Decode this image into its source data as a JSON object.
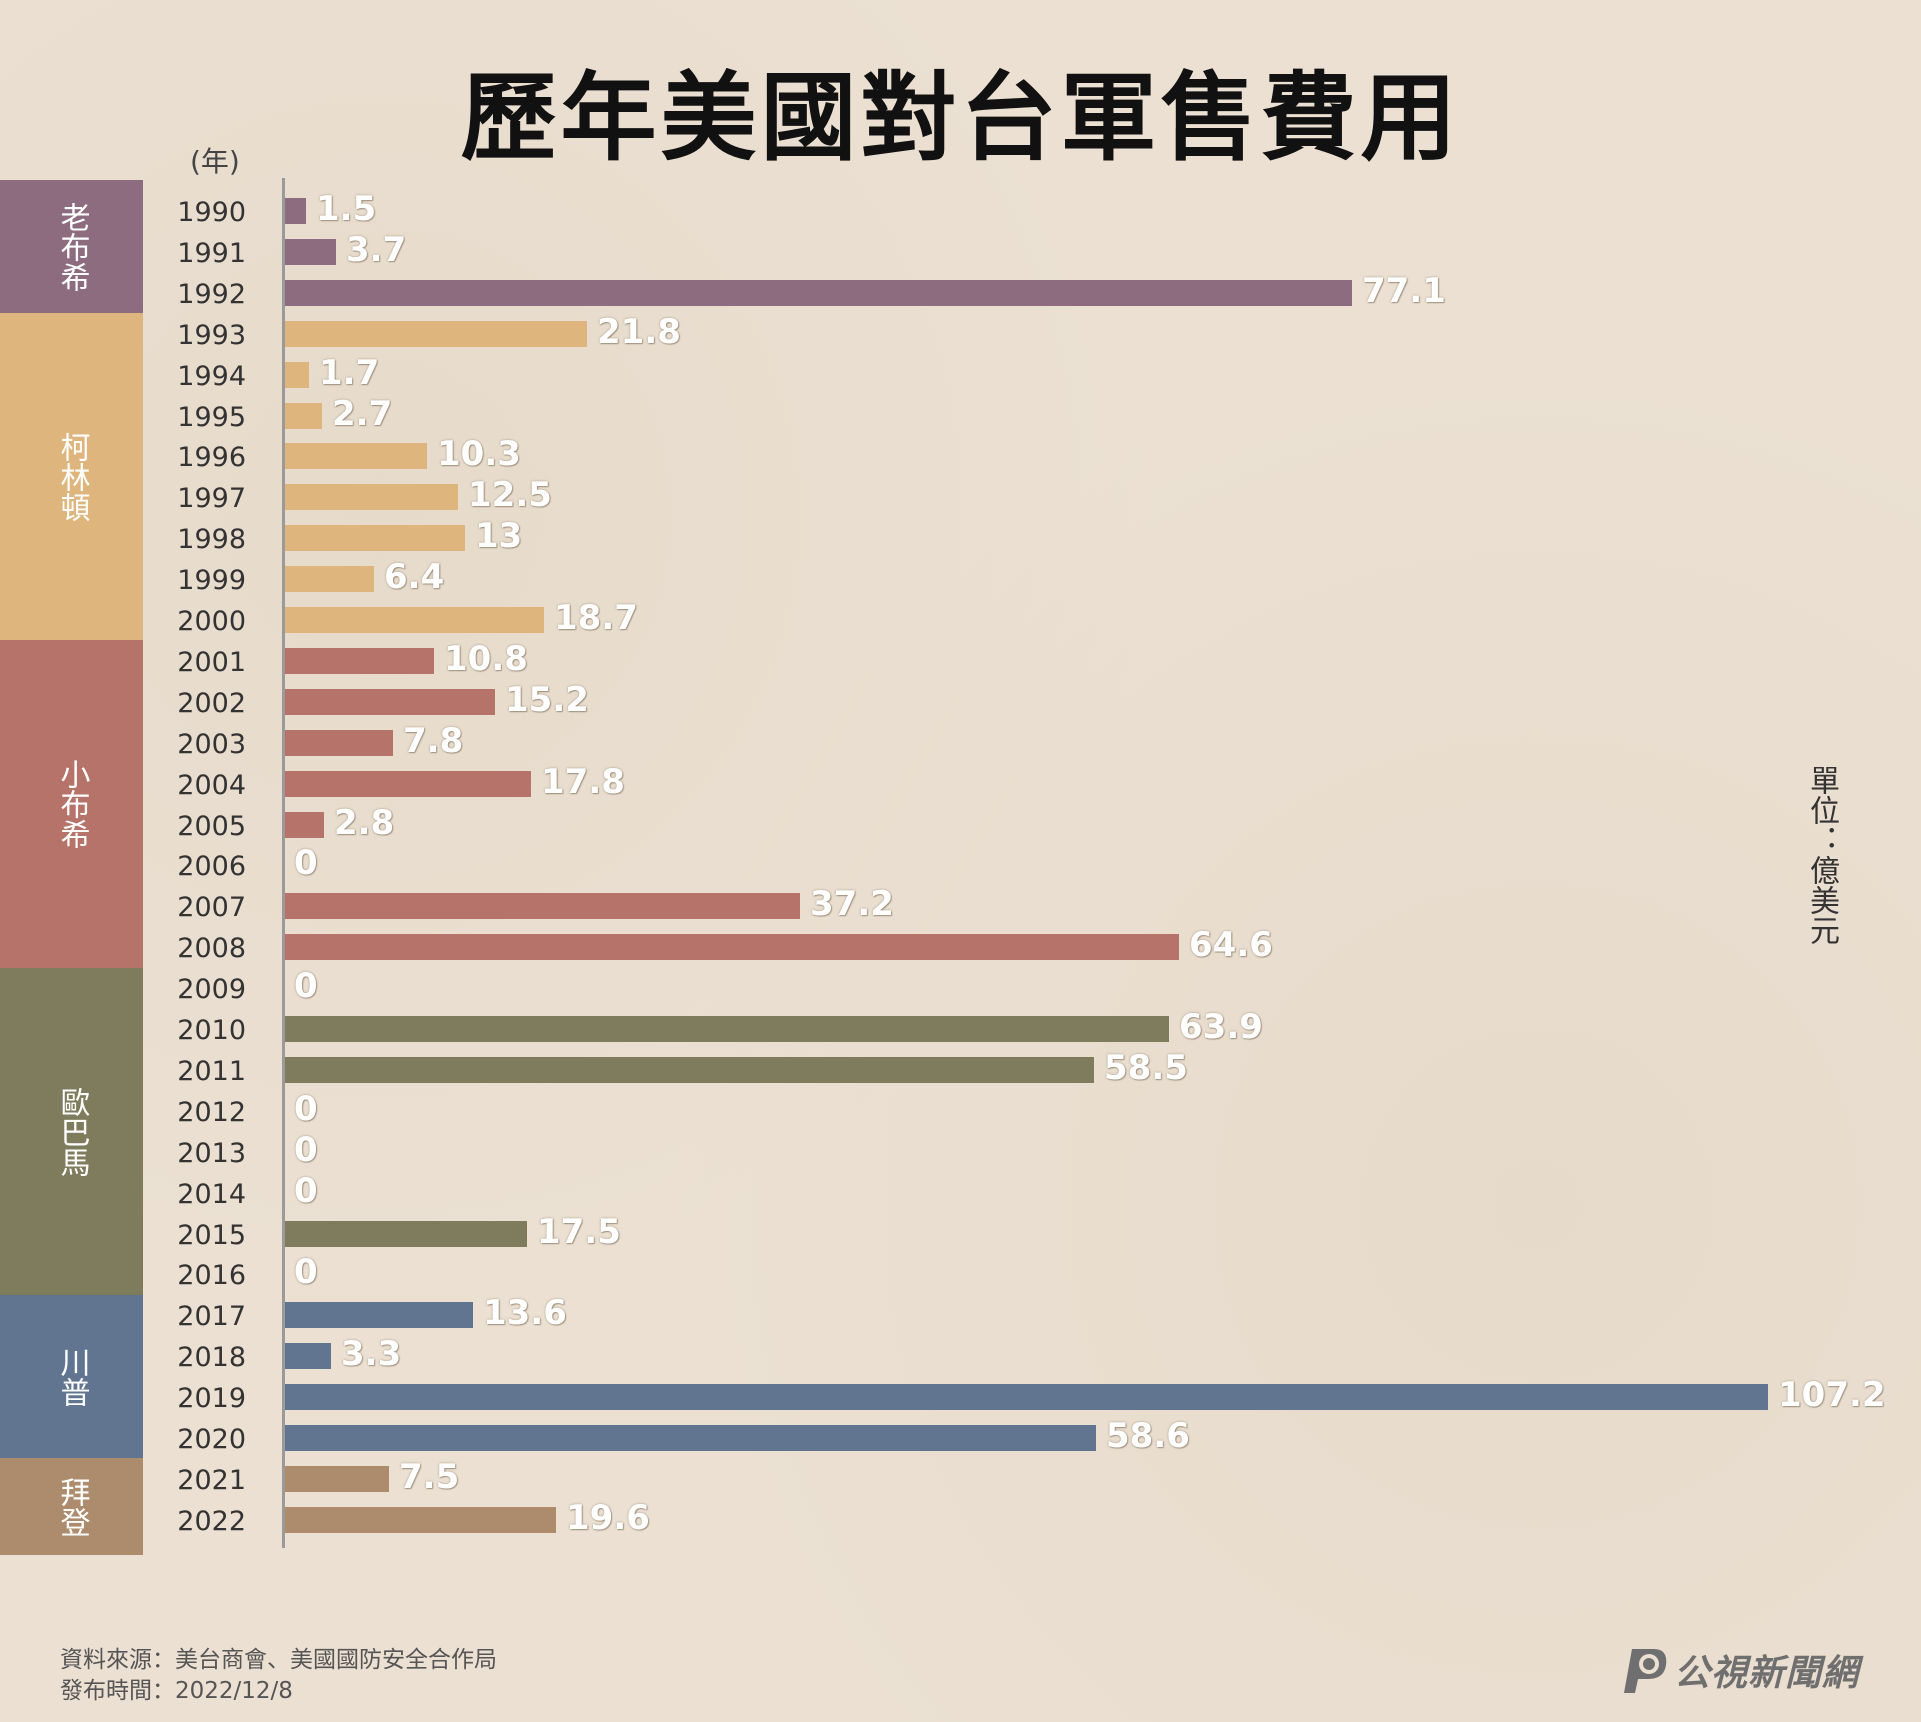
{
  "title": "歷年美國對台軍售費用",
  "year_unit": "(年)",
  "unit_note": "單位：億美元",
  "source": "資料來源：美台商會、美國國防安全合作局",
  "published": "發布時間：2022/12/8",
  "logo_text": "公視新聞網",
  "presidents": [
    {
      "name": "老布希",
      "start_index": 0,
      "count": 3,
      "color": "#8e6c80"
    },
    {
      "name": "柯林頓",
      "start_index": 3,
      "count": 8,
      "color": "#deb57c"
    },
    {
      "name": "小布希",
      "start_index": 11,
      "count": 8,
      "color": "#b6736a"
    },
    {
      "name": "歐巴馬",
      "start_index": 19,
      "count": 8,
      "color": "#7f7c5d"
    },
    {
      "name": "川普",
      "start_index": 27,
      "count": 4,
      "color": "#617590"
    },
    {
      "name": "拜登",
      "start_index": 31,
      "count": 2,
      "color": "#ad8c6e"
    }
  ],
  "chart_data": {
    "type": "bar",
    "orientation": "horizontal",
    "ylabel": "(年)",
    "xlabel": "",
    "unit": "億美元",
    "xlim": [
      0,
      107.2
    ],
    "grid": false,
    "categories": [
      "1990",
      "1991",
      "1992",
      "1993",
      "1994",
      "1995",
      "1996",
      "1997",
      "1998",
      "1999",
      "2000",
      "2001",
      "2002",
      "2003",
      "2004",
      "2005",
      "2006",
      "2007",
      "2008",
      "2009",
      "2010",
      "2011",
      "2012",
      "2013",
      "2014",
      "2015",
      "2016",
      "2017",
      "2018",
      "2019",
      "2020",
      "2021",
      "2022"
    ],
    "values": [
      1.5,
      3.7,
      77.1,
      21.8,
      1.7,
      2.7,
      10.3,
      12.5,
      13,
      6.4,
      18.7,
      10.8,
      15.2,
      7.8,
      17.8,
      2.8,
      0,
      37.2,
      64.6,
      0,
      63.9,
      58.5,
      0,
      0,
      0,
      17.5,
      0,
      13.6,
      3.3,
      107.2,
      58.6,
      7.5,
      19.6
    ],
    "value_labels": [
      "1.5",
      "3.7",
      "77.1",
      "21.8",
      "1.7",
      "2.7",
      "10.3",
      "12.5",
      "13",
      "6.4",
      "18.7",
      "10.8",
      "15.2",
      "7.8",
      "17.8",
      "2.8",
      "0",
      "37.2",
      "64.6",
      "0",
      "63.9",
      "58.5",
      "0",
      "0",
      "0",
      "17.5",
      "0",
      "13.6",
      "3.3",
      "107.2",
      "58.6",
      "7.5",
      "19.6"
    ]
  }
}
